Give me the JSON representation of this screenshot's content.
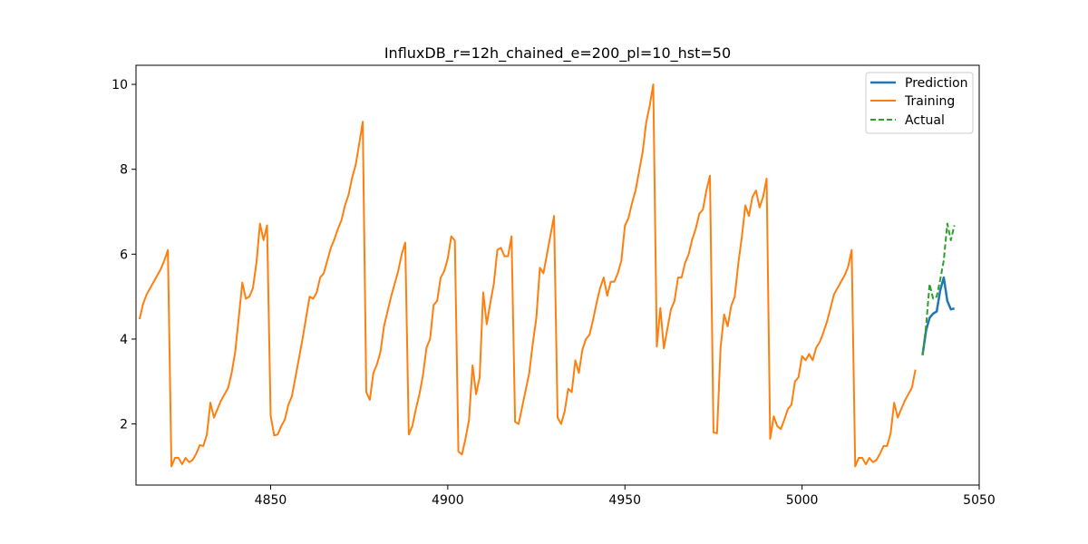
{
  "chart_data": {
    "type": "line",
    "title": "InfluxDB_r=12h_chained_e=200_pl=10_hst=50",
    "xlabel": "",
    "ylabel": "",
    "xlim": [
      4812,
      5050
    ],
    "ylim": [
      0.56,
      10.45
    ],
    "xticks": [
      4850,
      4900,
      4950,
      5000,
      5050
    ],
    "xtick_labels": [
      "4850",
      "4900",
      "4950",
      "5000",
      "5050"
    ],
    "yticks": [
      2,
      4,
      6,
      8,
      10
    ],
    "ytick_labels": [
      "2",
      "4",
      "6",
      "8",
      "10"
    ],
    "grid": false,
    "legend": "upper right",
    "training_start_x": 4813,
    "series": [
      {
        "name": "Prediction",
        "color": "#1f77b4",
        "style": "solid",
        "x": [
          5034,
          5035,
          5036,
          5037,
          5038,
          5039,
          5040,
          5041,
          5042,
          5043
        ],
        "y": [
          3.62,
          4.2,
          4.5,
          4.6,
          4.65,
          5.15,
          5.45,
          4.9,
          4.7,
          4.72
        ]
      },
      {
        "name": "Training",
        "color": "#ff7f0e",
        "style": "solid",
        "y": [
          4.47,
          4.83,
          5.05,
          5.2,
          5.35,
          5.5,
          5.65,
          5.85,
          6.1,
          1.0,
          1.2,
          1.2,
          1.05,
          1.2,
          1.1,
          1.15,
          1.3,
          1.5,
          1.48,
          1.75,
          2.5,
          2.15,
          2.35,
          2.55,
          2.7,
          2.85,
          3.2,
          3.7,
          4.5,
          5.33,
          4.95,
          5.0,
          5.2,
          5.8,
          6.72,
          6.33,
          6.68,
          2.2,
          1.73,
          1.75,
          1.95,
          2.1,
          2.45,
          2.65,
          3.1,
          3.55,
          4.0,
          4.5,
          5.0,
          4.95,
          5.1,
          5.45,
          5.55,
          5.85,
          6.15,
          6.35,
          6.6,
          6.8,
          7.15,
          7.4,
          7.8,
          8.1,
          8.6,
          9.12,
          2.75,
          2.57,
          3.2,
          3.4,
          3.7,
          4.3,
          4.65,
          5.0,
          5.3,
          5.6,
          6.0,
          6.27,
          1.75,
          1.95,
          2.35,
          2.7,
          3.15,
          3.8,
          4.0,
          4.8,
          4.9,
          5.45,
          5.6,
          5.9,
          6.42,
          6.32,
          1.35,
          1.28,
          1.65,
          2.1,
          3.38,
          2.7,
          3.1,
          5.1,
          4.35,
          4.85,
          5.3,
          6.1,
          6.15,
          5.95,
          5.95,
          6.42,
          2.05,
          2.0,
          2.4,
          2.8,
          3.2,
          3.9,
          4.5,
          5.68,
          5.55,
          6.0,
          6.45,
          6.9,
          2.15,
          2.0,
          2.3,
          2.83,
          2.75,
          3.5,
          3.2,
          3.75,
          4.0,
          4.1,
          4.45,
          4.85,
          5.2,
          5.45,
          5.02,
          5.35,
          5.35,
          5.55,
          5.85,
          6.67,
          6.85,
          7.2,
          7.5,
          7.95,
          8.4,
          9.1,
          9.5,
          10.0,
          3.82,
          4.73,
          3.78,
          4.25,
          4.7,
          4.9,
          5.45,
          5.45,
          5.8,
          6.0,
          6.35,
          6.6,
          6.95,
          7.05,
          7.5,
          7.85,
          1.8,
          1.78,
          3.8,
          4.58,
          4.3,
          4.78,
          5.0,
          5.78,
          6.4,
          7.15,
          6.9,
          7.35,
          7.5,
          7.1,
          7.35,
          7.78,
          1.65,
          2.18,
          1.95,
          1.88,
          2.1,
          2.35,
          2.45,
          3.0,
          3.1,
          3.6,
          3.5,
          3.65,
          3.5,
          3.8,
          3.93,
          4.15,
          4.4,
          4.72,
          5.05,
          5.2,
          5.35,
          5.5,
          5.7,
          6.1,
          1.0,
          1.2,
          1.2,
          1.05,
          1.2,
          1.1,
          1.15,
          1.3,
          1.48,
          1.48,
          1.78,
          2.5,
          2.15,
          2.35,
          2.55,
          2.7,
          2.85,
          3.28
        ]
      },
      {
        "name": "Actual",
        "color": "#2ca02c",
        "style": "dashed",
        "x": [
          5034,
          5035,
          5036,
          5037,
          5038,
          5039,
          5040,
          5041,
          5042,
          5043
        ],
        "y": [
          3.62,
          4.3,
          5.3,
          4.95,
          5.0,
          5.4,
          5.85,
          6.72,
          6.33,
          6.68
        ]
      }
    ]
  }
}
